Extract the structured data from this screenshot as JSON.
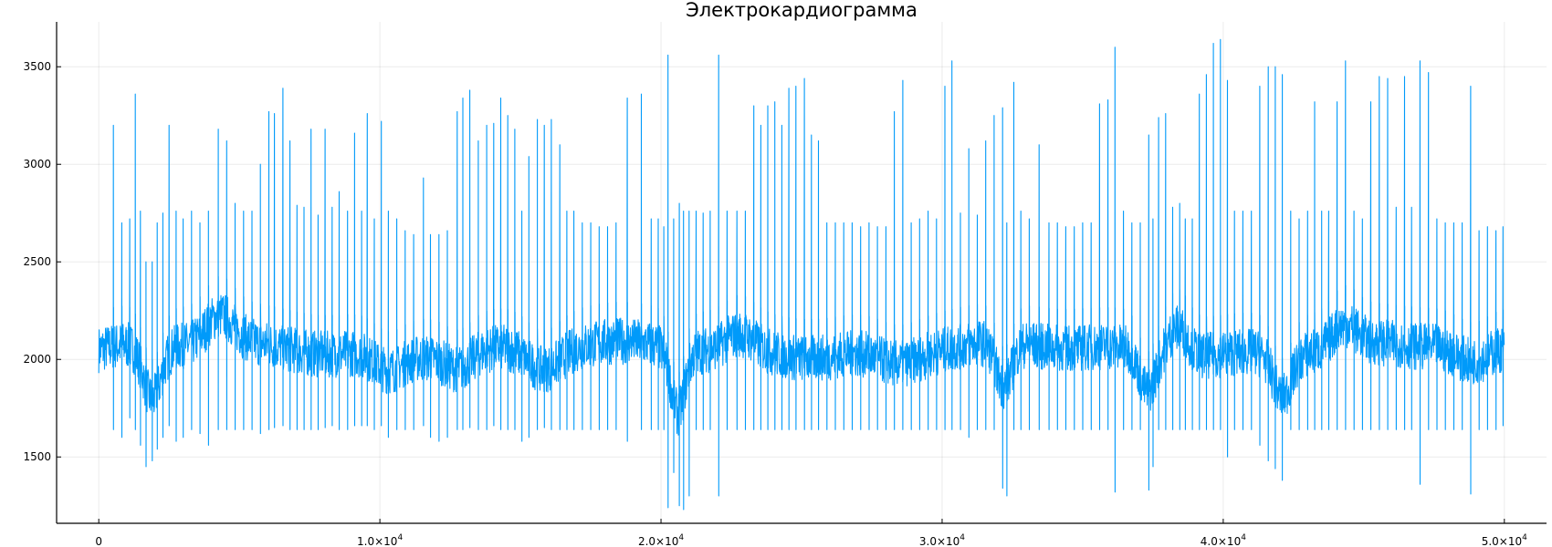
{
  "chart_data": {
    "type": "line",
    "title": "Электрокардиограмма",
    "xlabel": "",
    "ylabel": "",
    "xlim": [
      -1500,
      51500
    ],
    "ylim": [
      1160,
      3730
    ],
    "x_ticks": [
      {
        "value": 0,
        "mantissa": "0",
        "exponent": ""
      },
      {
        "value": 10000,
        "mantissa": "1.0×10",
        "exponent": "4"
      },
      {
        "value": 20000,
        "mantissa": "2.0×10",
        "exponent": "4"
      },
      {
        "value": 30000,
        "mantissa": "3.0×10",
        "exponent": "4"
      },
      {
        "value": 40000,
        "mantissa": "4.0×10",
        "exponent": "4"
      },
      {
        "value": 50000,
        "mantissa": "5.0×10",
        "exponent": "4"
      }
    ],
    "y_ticks": [
      {
        "value": 1500,
        "label": "1500"
      },
      {
        "value": 2000,
        "label": "2000"
      },
      {
        "value": 2500,
        "label": "2500"
      },
      {
        "value": 3000,
        "label": "3000"
      },
      {
        "value": 3500,
        "label": "3500"
      }
    ],
    "grid": true,
    "legend": "none",
    "series": [
      {
        "color": "#009AFA",
        "sample_count": 50000,
        "baseline": 2050,
        "beats": [
          [
            520,
            3200,
            1640
          ],
          [
            820,
            2700,
            1600
          ],
          [
            1100,
            2720,
            1700
          ],
          [
            1300,
            3360,
            1640
          ],
          [
            1480,
            2760,
            1560
          ],
          [
            1680,
            2500,
            1450
          ],
          [
            1900,
            2500,
            1480
          ],
          [
            2080,
            2700,
            1540
          ],
          [
            2280,
            2750,
            1600
          ],
          [
            2500,
            3200,
            1660
          ],
          [
            2750,
            2760,
            1580
          ],
          [
            3000,
            2720,
            1600
          ],
          [
            3300,
            2760,
            1640
          ],
          [
            3600,
            2700,
            1620
          ],
          [
            3900,
            2760,
            1560
          ],
          [
            4250,
            3180,
            1640
          ],
          [
            4550,
            3120,
            1640
          ],
          [
            4850,
            2800,
            1640
          ],
          [
            5150,
            2760,
            1640
          ],
          [
            5450,
            2760,
            1640
          ],
          [
            5750,
            3000,
            1620
          ],
          [
            6050,
            3270,
            1640
          ],
          [
            6250,
            3260,
            1650
          ],
          [
            6550,
            3390,
            1660
          ],
          [
            6800,
            3120,
            1640
          ],
          [
            7050,
            2790,
            1640
          ],
          [
            7300,
            2780,
            1640
          ],
          [
            7550,
            3180,
            1640
          ],
          [
            7800,
            2740,
            1640
          ],
          [
            8050,
            3180,
            1650
          ],
          [
            8300,
            2780,
            1660
          ],
          [
            8550,
            2860,
            1640
          ],
          [
            8850,
            2760,
            1640
          ],
          [
            9100,
            3160,
            1660
          ],
          [
            9350,
            2760,
            1660
          ],
          [
            9550,
            3260,
            1660
          ],
          [
            9800,
            2720,
            1640
          ],
          [
            10050,
            3220,
            1660
          ],
          [
            10300,
            2760,
            1600
          ],
          [
            10600,
            2720,
            1640
          ],
          [
            10900,
            2660,
            1640
          ],
          [
            11200,
            2640,
            1640
          ],
          [
            11550,
            2930,
            1660
          ],
          [
            11800,
            2640,
            1600
          ],
          [
            12100,
            2640,
            1580
          ],
          [
            12400,
            2660,
            1600
          ],
          [
            12750,
            3270,
            1640
          ],
          [
            12950,
            3340,
            1640
          ],
          [
            13200,
            3380,
            1650
          ],
          [
            13500,
            3120,
            1640
          ],
          [
            13800,
            3200,
            1640
          ],
          [
            14050,
            3210,
            1660
          ],
          [
            14300,
            3340,
            1640
          ],
          [
            14550,
            3250,
            1640
          ],
          [
            14800,
            3180,
            1640
          ],
          [
            15050,
            2760,
            1580
          ],
          [
            15300,
            3040,
            1600
          ],
          [
            15600,
            3230,
            1640
          ],
          [
            15850,
            3200,
            1650
          ],
          [
            16100,
            3230,
            1640
          ],
          [
            16400,
            3100,
            1640
          ],
          [
            16650,
            2760,
            1640
          ],
          [
            16900,
            2760,
            1640
          ],
          [
            17200,
            2700,
            1640
          ],
          [
            17500,
            2700,
            1640
          ],
          [
            17800,
            2680,
            1640
          ],
          [
            18100,
            2680,
            1640
          ],
          [
            18400,
            2700,
            1640
          ],
          [
            18800,
            3340,
            1580
          ],
          [
            19300,
            3360,
            1640
          ],
          [
            19650,
            2720,
            1640
          ],
          [
            19900,
            2720,
            1640
          ],
          [
            20100,
            2680,
            1640
          ],
          [
            20250,
            3560,
            1240
          ],
          [
            20450,
            2720,
            1420
          ],
          [
            20650,
            2800,
            1250
          ],
          [
            20800,
            2760,
            1230
          ],
          [
            21000,
            2760,
            1300
          ],
          [
            21250,
            2760,
            1640
          ],
          [
            21500,
            2750,
            1640
          ],
          [
            21750,
            2760,
            1640
          ],
          [
            22050,
            3560,
            1300
          ],
          [
            22350,
            2760,
            1640
          ],
          [
            22700,
            2760,
            1640
          ],
          [
            23000,
            2760,
            1640
          ],
          [
            23300,
            3300,
            1640
          ],
          [
            23550,
            3200,
            1640
          ],
          [
            23800,
            3300,
            1640
          ],
          [
            24050,
            3320,
            1640
          ],
          [
            24300,
            3200,
            1640
          ],
          [
            24550,
            3390,
            1640
          ],
          [
            24800,
            3400,
            1640
          ],
          [
            25100,
            3440,
            1640
          ],
          [
            25350,
            3150,
            1640
          ],
          [
            25600,
            3120,
            1640
          ],
          [
            25900,
            2700,
            1640
          ],
          [
            26200,
            2700,
            1640
          ],
          [
            26500,
            2700,
            1640
          ],
          [
            26800,
            2700,
            1640
          ],
          [
            27100,
            2680,
            1640
          ],
          [
            27400,
            2700,
            1640
          ],
          [
            27700,
            2680,
            1640
          ],
          [
            28000,
            2680,
            1640
          ],
          [
            28300,
            3270,
            1640
          ],
          [
            28600,
            3430,
            1640
          ],
          [
            28900,
            2700,
            1640
          ],
          [
            29200,
            2720,
            1640
          ],
          [
            29500,
            2760,
            1640
          ],
          [
            29800,
            2720,
            1640
          ],
          [
            30100,
            3400,
            1640
          ],
          [
            30350,
            3530,
            1640
          ],
          [
            30650,
            2750,
            1640
          ],
          [
            30950,
            3080,
            1600
          ],
          [
            31250,
            2740,
            1640
          ],
          [
            31550,
            3120,
            1640
          ],
          [
            31850,
            3250,
            1640
          ],
          [
            32150,
            3290,
            1340
          ],
          [
            32300,
            2700,
            1300
          ],
          [
            32550,
            3420,
            1640
          ],
          [
            32800,
            2760,
            1640
          ],
          [
            33100,
            2720,
            1640
          ],
          [
            33450,
            3100,
            1640
          ],
          [
            33800,
            2700,
            1640
          ],
          [
            34100,
            2700,
            1640
          ],
          [
            34400,
            2680,
            1640
          ],
          [
            34700,
            2680,
            1640
          ],
          [
            35000,
            2700,
            1640
          ],
          [
            35300,
            2700,
            1640
          ],
          [
            35600,
            3310,
            1640
          ],
          [
            35900,
            3330,
            1640
          ],
          [
            36150,
            3600,
            1320
          ],
          [
            36450,
            2760,
            1640
          ],
          [
            36750,
            2700,
            1640
          ],
          [
            37050,
            2700,
            1640
          ],
          [
            37350,
            3150,
            1330
          ],
          [
            37500,
            2720,
            1450
          ],
          [
            37700,
            3240,
            1640
          ],
          [
            37950,
            3260,
            1640
          ],
          [
            38200,
            2780,
            1640
          ],
          [
            38450,
            2800,
            1640
          ],
          [
            38650,
            2720,
            1640
          ],
          [
            38900,
            2720,
            1640
          ],
          [
            39150,
            3360,
            1640
          ],
          [
            39400,
            3460,
            1640
          ],
          [
            39650,
            3620,
            1640
          ],
          [
            39900,
            3640,
            1640
          ],
          [
            40150,
            3430,
            1500
          ],
          [
            40400,
            2760,
            1640
          ],
          [
            40700,
            2760,
            1640
          ],
          [
            41000,
            2760,
            1640
          ],
          [
            41300,
            3400,
            1560
          ],
          [
            41600,
            3500,
            1480
          ],
          [
            41850,
            3500,
            1440
          ],
          [
            42100,
            3460,
            1380
          ],
          [
            42400,
            2760,
            1640
          ],
          [
            42700,
            2720,
            1640
          ],
          [
            43000,
            2760,
            1640
          ],
          [
            43250,
            3320,
            1640
          ],
          [
            43500,
            2760,
            1640
          ],
          [
            43750,
            2760,
            1640
          ],
          [
            44050,
            3320,
            1640
          ],
          [
            44350,
            3530,
            1640
          ],
          [
            44650,
            2760,
            1640
          ],
          [
            44950,
            2720,
            1640
          ],
          [
            45250,
            3320,
            1640
          ],
          [
            45550,
            3450,
            1640
          ],
          [
            45850,
            3440,
            1640
          ],
          [
            46150,
            2780,
            1640
          ],
          [
            46450,
            3450,
            1640
          ],
          [
            46700,
            2780,
            1640
          ],
          [
            47000,
            3530,
            1360
          ],
          [
            47300,
            3470,
            1640
          ],
          [
            47600,
            2720,
            1640
          ],
          [
            47900,
            2700,
            1640
          ],
          [
            48200,
            2700,
            1640
          ],
          [
            48500,
            2700,
            1640
          ],
          [
            48800,
            3400,
            1310
          ],
          [
            49100,
            2660,
            1640
          ],
          [
            49400,
            2680,
            1640
          ],
          [
            49700,
            2660,
            1640
          ],
          [
            49950,
            2680,
            1660
          ]
        ],
        "drifts": [
          [
            1900,
            -280,
            450
          ],
          [
            4300,
            150,
            700
          ],
          [
            10300,
            -90,
            700
          ],
          [
            12800,
            -70,
            600
          ],
          [
            15800,
            -110,
            800
          ],
          [
            20600,
            -320,
            350
          ],
          [
            22800,
            80,
            700
          ],
          [
            28400,
            -70,
            1000
          ],
          [
            32200,
            -230,
            400
          ],
          [
            37300,
            -200,
            400
          ],
          [
            38400,
            150,
            500
          ],
          [
            42100,
            -220,
            450
          ],
          [
            44300,
            110,
            600
          ],
          [
            48900,
            -90,
            800
          ]
        ]
      }
    ]
  }
}
